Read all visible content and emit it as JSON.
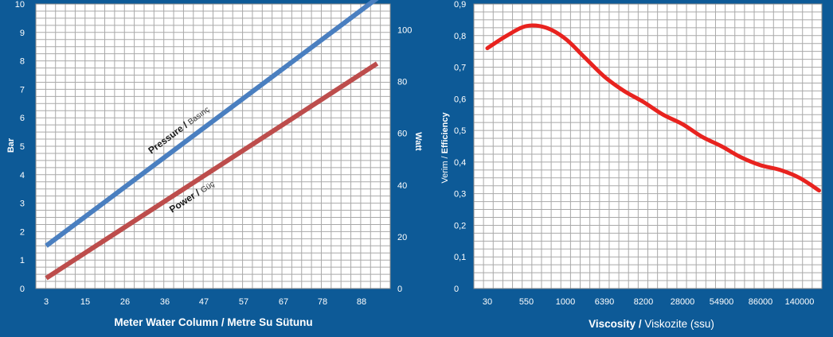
{
  "colors": {
    "background": "#0d5a97",
    "plot_background": "#ffffff",
    "grid": "#a9a9a9",
    "pressure_line": "#4a7fc0",
    "power_line": "#bd4d4c",
    "efficiency_line": "#e8231f"
  },
  "chart_data": [
    {
      "type": "line",
      "x_type": "category",
      "categories": [
        "3",
        "15",
        "26",
        "36",
        "47",
        "57",
        "67",
        "78",
        "88"
      ],
      "xlabel": "Meter Water Column / Metre Su Sütunu",
      "ylabel": "Bar",
      "y2label": "Watt",
      "ylim": [
        0,
        10
      ],
      "y2lim": [
        0,
        110
      ],
      "yticks": [
        "0",
        "1",
        "2",
        "3",
        "4",
        "5",
        "6",
        "7",
        "8",
        "9",
        "10"
      ],
      "y2ticks": [
        "0",
        "20",
        "40",
        "60",
        "80",
        "100"
      ],
      "grid": true,
      "series": [
        {
          "key": "pressure",
          "axis": "left",
          "x": [
            3,
            92
          ],
          "values": [
            1.5,
            10.2
          ],
          "label_bold": "Pressure /",
          "label_regular": "Basınç"
        },
        {
          "key": "power",
          "axis": "right",
          "x": [
            3,
            92
          ],
          "values": [
            4,
            87
          ],
          "label_bold": "Power /",
          "label_regular": "Güç"
        }
      ]
    },
    {
      "type": "line",
      "x_type": "category",
      "categories": [
        "30",
        "550",
        "1000",
        "6390",
        "8200",
        "28000",
        "54900",
        "86000",
        "140000"
      ],
      "xlabel_bold": "Viscosity /",
      "xlabel_regular": "Viskozite (ssu)",
      "ylabel_regular": "Verim /",
      "ylabel_bold": "Efficiency",
      "ylim": [
        0,
        0.9
      ],
      "yticks": [
        "0",
        "0,1",
        "0,2",
        "0,3",
        "0,4",
        "0,5",
        "0,6",
        "0,7",
        "0,8",
        "0,9"
      ],
      "grid": true,
      "series": [
        {
          "key": "efficiency",
          "x": [
            0,
            0.5,
            1.0,
            1.5,
            2.0,
            2.5,
            3.0,
            3.5,
            4.0,
            4.5,
            5.0,
            5.5,
            6.0,
            6.5,
            7.0,
            7.5,
            8.0,
            8.5
          ],
          "values": [
            0.76,
            0.8,
            0.83,
            0.825,
            0.79,
            0.73,
            0.67,
            0.625,
            0.59,
            0.55,
            0.52,
            0.48,
            0.45,
            0.415,
            0.39,
            0.375,
            0.35,
            0.31
          ]
        }
      ]
    }
  ]
}
